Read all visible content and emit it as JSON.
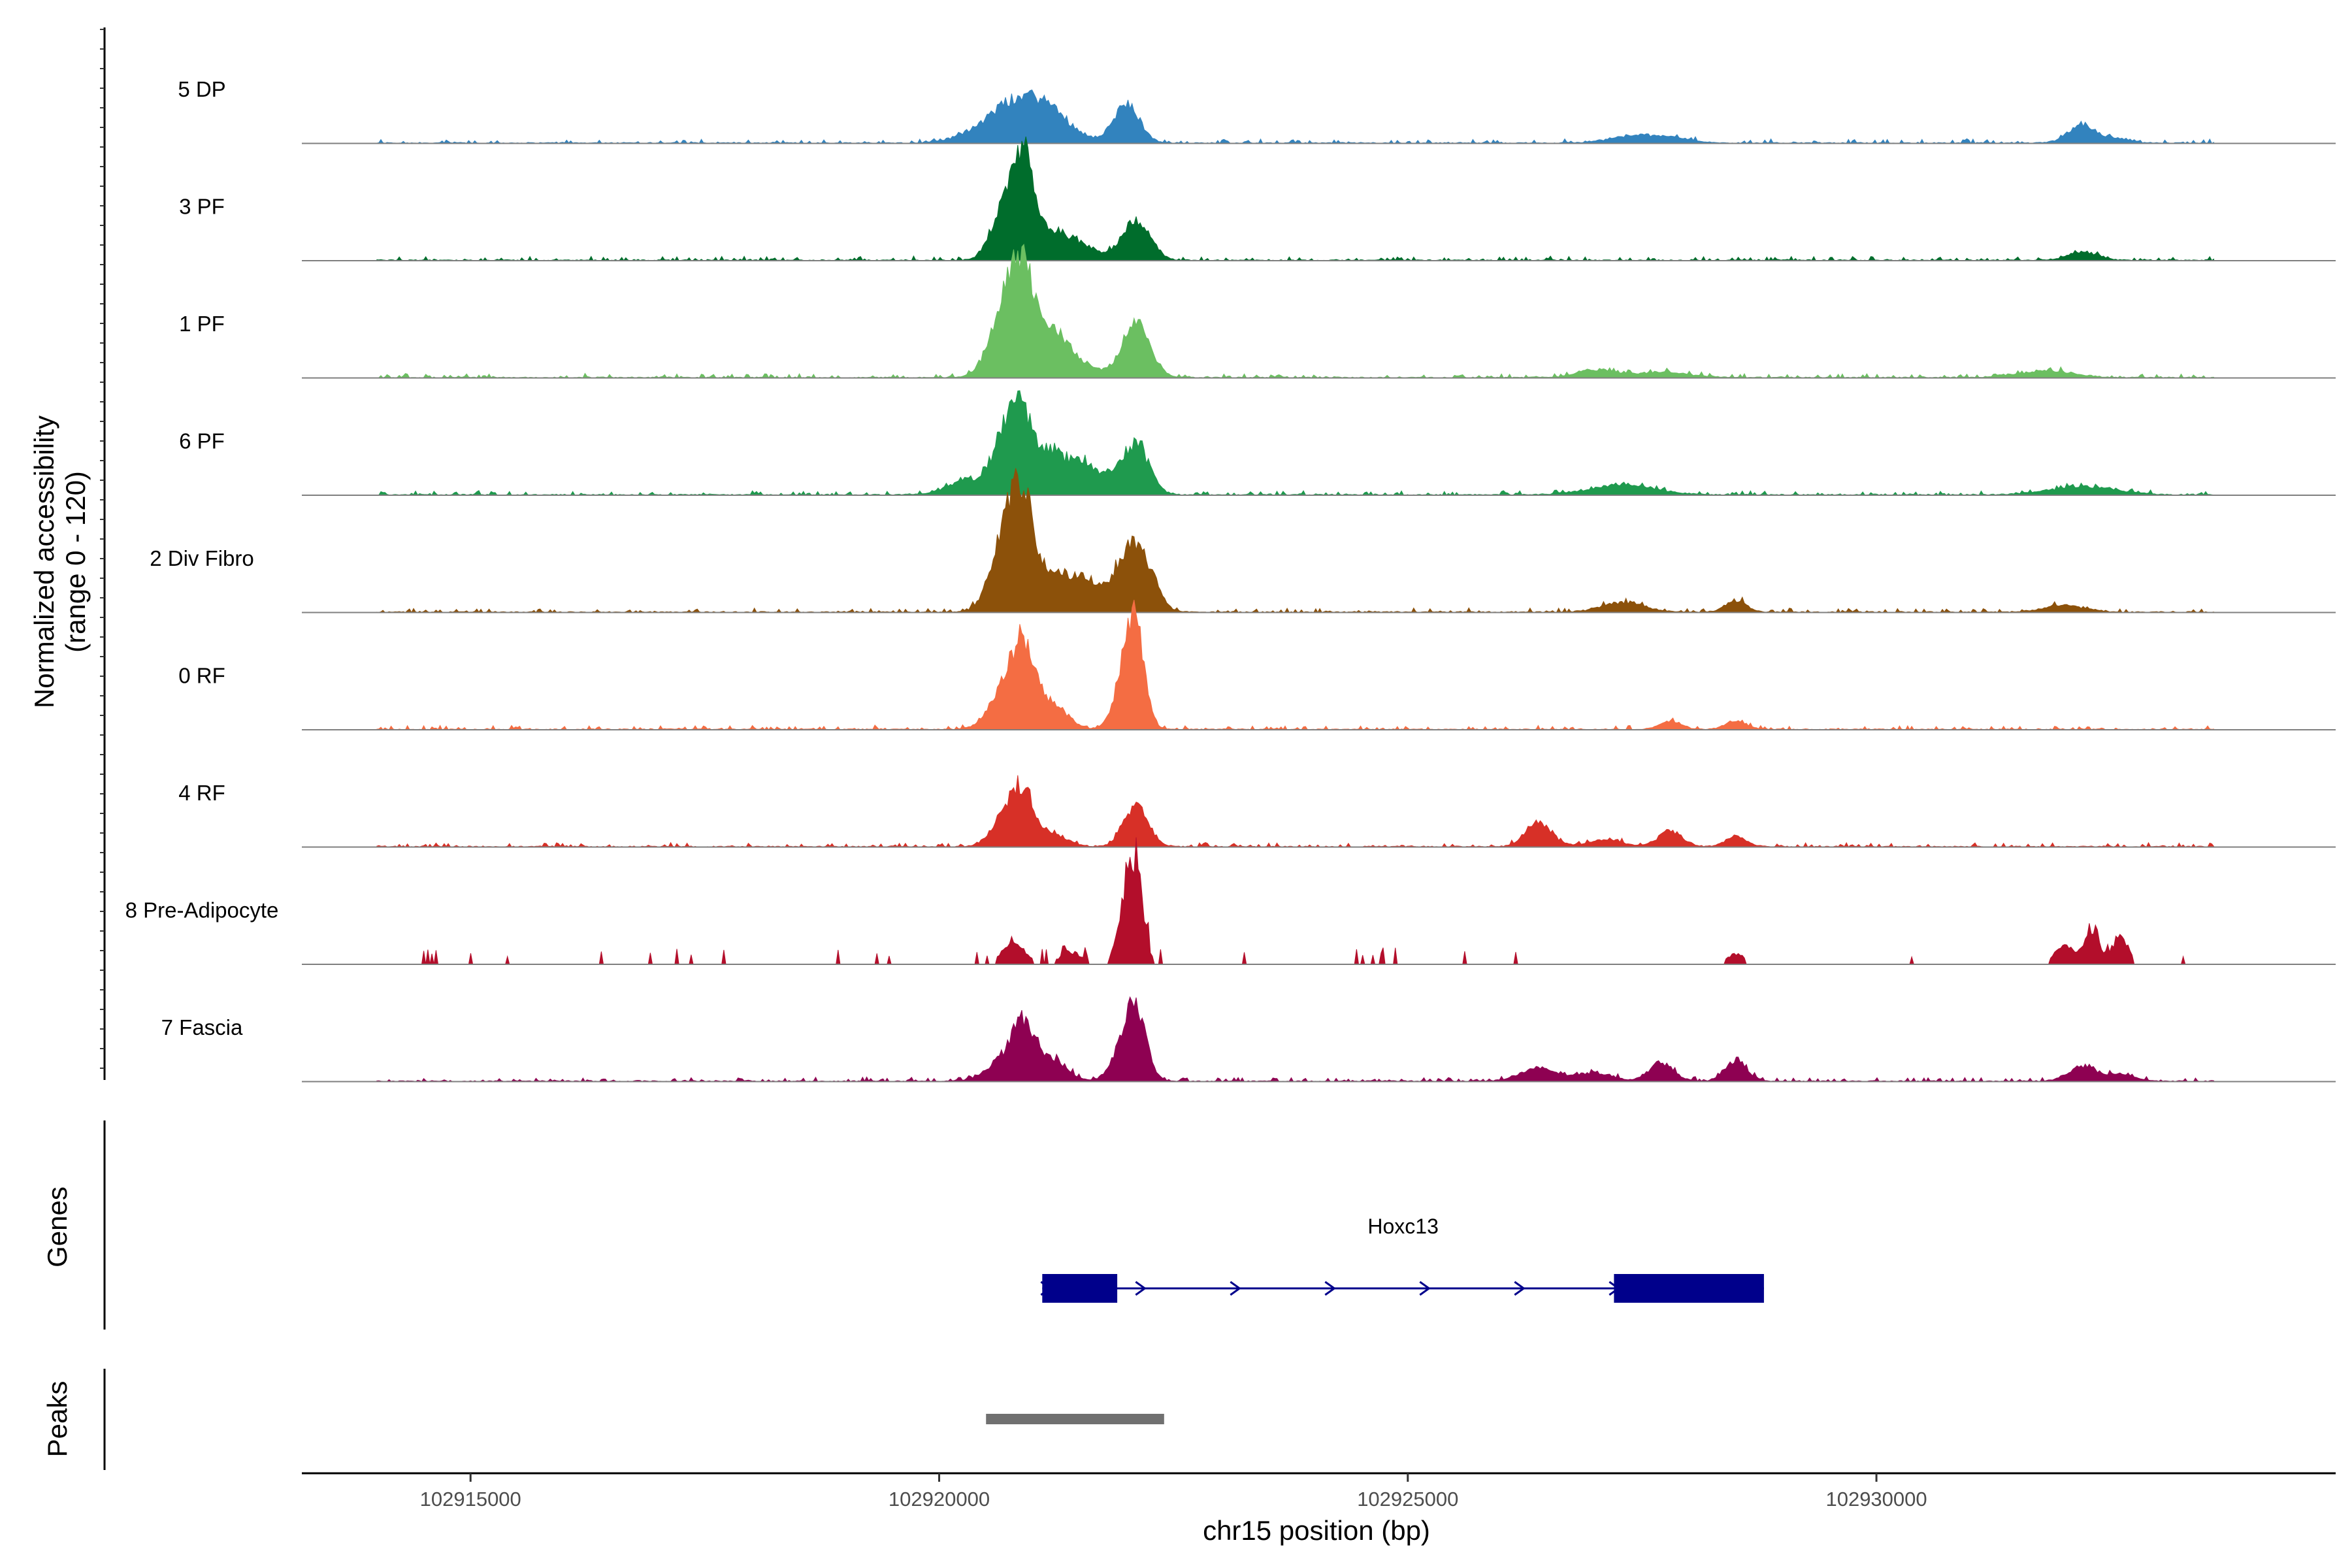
{
  "chart_data": {
    "type": "area",
    "chromosome": "chr15",
    "xlabel": "chr15 position (bp)",
    "ylabel_line1": "Normalized accessibility",
    "ylabel_line2": "(range 0 - 120)",
    "y_range": [
      0,
      120
    ],
    "x_range": [
      102913200,
      102934900
    ],
    "x_ticks": [
      102915000,
      102920000,
      102925000,
      102930000
    ],
    "x_tick_labels": [
      "102915000",
      "102920000",
      "102925000",
      "102930000"
    ],
    "coverage_start": 102914000,
    "coverage_end": 102933600,
    "tracks": [
      {
        "name": "5 DP",
        "color": "#3283be",
        "peaks": [
          [
            102920900,
            35,
            280
          ],
          [
            102921200,
            22,
            250
          ],
          [
            102920600,
            18,
            300
          ],
          [
            102922000,
            45,
            140
          ],
          [
            102927400,
            8,
            250
          ],
          [
            102927800,
            6,
            200
          ],
          [
            102932200,
            22,
            150
          ],
          [
            102932600,
            5,
            120
          ]
        ]
      },
      {
        "name": "3 PF",
        "color": "#006d2c",
        "peaks": [
          [
            102920700,
            60,
            140
          ],
          [
            102920900,
            110,
            110
          ],
          [
            102921200,
            30,
            150
          ],
          [
            102921500,
            18,
            180
          ],
          [
            102922100,
            48,
            150
          ],
          [
            102932200,
            10,
            150
          ]
        ]
      },
      {
        "name": "1 PF",
        "color": "#6bbf61",
        "peaks": [
          [
            102920700,
            80,
            160
          ],
          [
            102920900,
            100,
            120
          ],
          [
            102921200,
            50,
            160
          ],
          [
            102921500,
            15,
            180
          ],
          [
            102922100,
            65,
            150
          ],
          [
            102927000,
            9,
            200
          ],
          [
            102927700,
            6,
            300
          ],
          [
            102931800,
            8,
            300
          ]
        ]
      },
      {
        "name": "6 PF",
        "color": "#1f9a4e",
        "peaks": [
          [
            102920300,
            18,
            200
          ],
          [
            102920700,
            70,
            130
          ],
          [
            102920900,
            85,
            110
          ],
          [
            102921200,
            50,
            130
          ],
          [
            102921500,
            38,
            130
          ],
          [
            102921800,
            20,
            150
          ],
          [
            102922100,
            58,
            140
          ],
          [
            102927300,
            12,
            350
          ],
          [
            102932200,
            10,
            350
          ]
        ]
      },
      {
        "name": "2 Div Fibro",
        "color": "#8c510a",
        "peaks": [
          [
            102920700,
            90,
            150
          ],
          [
            102920900,
            105,
            120
          ],
          [
            102921200,
            40,
            160
          ],
          [
            102921500,
            28,
            160
          ],
          [
            102921700,
            18,
            160
          ],
          [
            102922000,
            60,
            130
          ],
          [
            102922200,
            50,
            130
          ],
          [
            102927300,
            12,
            220
          ],
          [
            102928500,
            14,
            110
          ],
          [
            102932000,
            8,
            220
          ]
        ]
      },
      {
        "name": "0 RF",
        "color": "#f46d43",
        "peaks": [
          [
            102920700,
            45,
            160
          ],
          [
            102920900,
            85,
            120
          ],
          [
            102921200,
            30,
            160
          ],
          [
            102922000,
            65,
            120
          ],
          [
            102922100,
            85,
            100
          ],
          [
            102927800,
            9,
            120
          ],
          [
            102928500,
            10,
            110
          ]
        ]
      },
      {
        "name": "4 RF",
        "color": "#d73027",
        "peaks": [
          [
            102920700,
            35,
            140
          ],
          [
            102920900,
            55,
            120
          ],
          [
            102921200,
            15,
            160
          ],
          [
            102922100,
            50,
            130
          ],
          [
            102926400,
            28,
            140
          ],
          [
            102927100,
            8,
            180
          ],
          [
            102927800,
            18,
            130
          ],
          [
            102928500,
            12,
            110
          ]
        ]
      },
      {
        "name": "8 Pre-Adipocyte",
        "color": "#b30e2b",
        "peaks": [
          [
            102920800,
            30,
            110
          ],
          [
            102921400,
            15,
            110
          ],
          [
            102922000,
            70,
            90
          ],
          [
            102922100,
            90,
            80
          ],
          [
            102932000,
            25,
            90
          ],
          [
            102932300,
            45,
            80
          ],
          [
            102932600,
            35,
            80
          ],
          [
            102928500,
            12,
            90
          ]
        ]
      },
      {
        "name": "7 Fascia",
        "color": "#8e0152",
        "peaks": [
          [
            102920700,
            25,
            180
          ],
          [
            102920900,
            55,
            120
          ],
          [
            102921200,
            25,
            160
          ],
          [
            102922000,
            40,
            140
          ],
          [
            102922100,
            65,
            110
          ],
          [
            102926400,
            15,
            200
          ],
          [
            102927000,
            10,
            180
          ],
          [
            102927700,
            22,
            130
          ],
          [
            102928500,
            24,
            120
          ],
          [
            102932200,
            18,
            150
          ],
          [
            102932600,
            8,
            150
          ]
        ]
      }
    ],
    "genes": [
      {
        "name": "Hoxc13",
        "strand": "+",
        "start": 102921100,
        "end": 102928800,
        "exons": [
          [
            102921100,
            102921900
          ],
          [
            102927200,
            102928800
          ]
        ],
        "color": "#00008b"
      }
    ],
    "peak_regions": [
      {
        "start": 102920500,
        "end": 102922400,
        "color": "#707070"
      }
    ],
    "panel_labels": {
      "genes": "Genes",
      "peaks": "Peaks"
    }
  }
}
